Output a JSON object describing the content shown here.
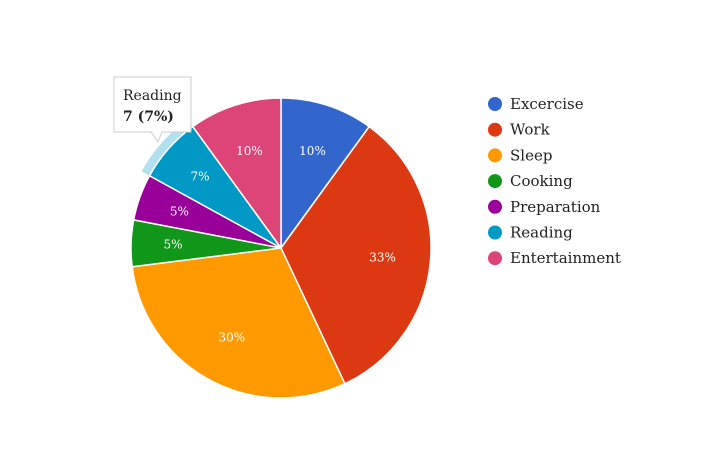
{
  "chart_data": {
    "type": "pie",
    "categories": [
      "Excercise",
      "Work",
      "Sleep",
      "Cooking",
      "Preparation",
      "Reading",
      "Entertainment"
    ],
    "values": [
      10,
      33,
      30,
      5,
      5,
      7,
      10
    ],
    "labels": [
      "10%",
      "33%",
      "30%",
      "5%",
      "5%",
      "7%",
      "10%"
    ],
    "colors": [
      "#3366cc",
      "#dc3912",
      "#ff9900",
      "#109618",
      "#990099",
      "#0099c6",
      "#dd4477"
    ],
    "legend_position": "right",
    "tooltip": {
      "category": "Reading",
      "value_text": "7 (7%)"
    }
  }
}
